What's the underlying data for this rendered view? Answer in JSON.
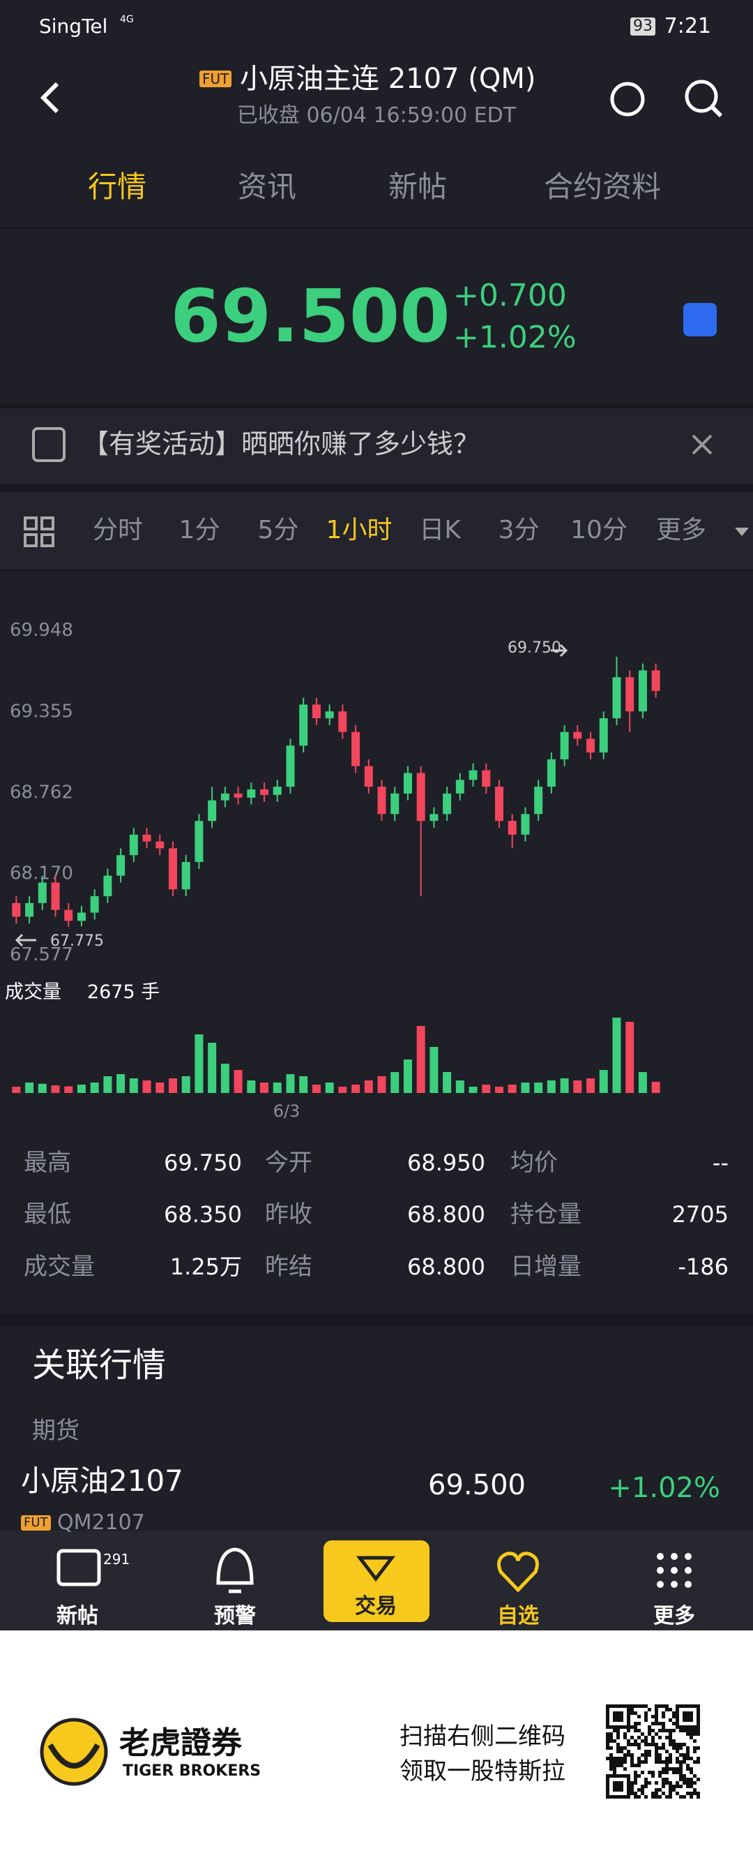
{
  "status_bar": {
    "carrier": "SingTel",
    "network": "4G",
    "battery": "93",
    "time": "7:21"
  },
  "header": {
    "badge": "FUT",
    "title": "小原油主连 2107 (QM)",
    "subtitle": "已收盘 06/04 16:59:00 EDT"
  },
  "tabs": [
    "行情",
    "资讯",
    "新帖",
    "合约资料"
  ],
  "quote": {
    "price": "69.500",
    "change": "+0.700",
    "change_pct": "+1.02%"
  },
  "banner": "【有奖活动】晒晒你赚了多少钱？",
  "periods": [
    "分时",
    "1分",
    "5分",
    "1小时",
    "日K",
    "3分",
    "10分",
    "更多"
  ],
  "chart_data": {
    "type": "candlestick",
    "up_color": "#3ccf7d",
    "down_color": "#f2465c",
    "open": [
      67.95,
      67.85,
      67.95,
      68.1,
      67.9,
      67.82,
      67.88,
      68.0,
      68.15,
      68.3,
      68.45,
      68.4,
      68.35,
      68.05,
      68.25,
      68.55,
      68.7,
      68.75,
      68.72,
      68.78,
      68.74,
      68.8,
      69.1,
      69.4,
      69.3,
      69.35,
      69.2,
      68.95,
      68.8,
      68.6,
      68.75,
      68.9,
      68.55,
      68.6,
      68.75,
      68.85,
      68.92,
      68.8,
      68.55,
      68.45,
      68.6,
      68.8,
      69.0,
      69.2,
      69.15,
      69.05,
      69.3,
      69.6,
      69.35,
      69.65
    ],
    "high": [
      68.0,
      68.0,
      68.15,
      68.15,
      67.95,
      67.93,
      68.05,
      68.2,
      68.35,
      68.5,
      68.5,
      68.45,
      68.4,
      68.3,
      68.6,
      68.8,
      68.8,
      68.8,
      68.83,
      68.83,
      68.85,
      69.15,
      69.45,
      69.45,
      69.4,
      69.4,
      69.25,
      69.0,
      68.85,
      68.8,
      68.95,
      68.95,
      68.65,
      68.8,
      68.9,
      68.97,
      68.97,
      68.85,
      68.6,
      68.65,
      68.85,
      69.05,
      69.25,
      69.25,
      69.2,
      69.35,
      69.75,
      69.65,
      69.7,
      69.7
    ],
    "low": [
      67.8,
      67.8,
      67.9,
      67.85,
      67.775,
      67.78,
      67.83,
      67.95,
      68.1,
      68.25,
      68.35,
      68.3,
      68.0,
      68.0,
      68.2,
      68.5,
      68.65,
      68.67,
      68.67,
      68.69,
      68.69,
      68.75,
      69.05,
      69.25,
      69.25,
      69.15,
      68.9,
      68.75,
      68.55,
      68.55,
      68.7,
      68.0,
      68.5,
      68.55,
      68.7,
      68.8,
      68.75,
      68.5,
      68.35,
      68.4,
      68.55,
      68.75,
      68.95,
      69.1,
      69.0,
      69.0,
      69.25,
      69.2,
      69.3,
      69.45
    ],
    "close": [
      67.85,
      67.95,
      68.1,
      67.9,
      67.82,
      67.88,
      68.0,
      68.15,
      68.3,
      68.45,
      68.4,
      68.35,
      68.05,
      68.25,
      68.55,
      68.7,
      68.75,
      68.72,
      68.78,
      68.74,
      68.8,
      69.1,
      69.4,
      69.3,
      69.35,
      69.2,
      68.95,
      68.8,
      68.6,
      68.75,
      68.9,
      68.55,
      68.6,
      68.75,
      68.85,
      68.92,
      68.8,
      68.55,
      68.45,
      68.6,
      68.8,
      69.0,
      69.2,
      69.15,
      69.05,
      69.3,
      69.6,
      69.35,
      69.65,
      69.5
    ],
    "ylim": [
      67.577,
      69.948
    ],
    "yticks": [
      69.948,
      69.355,
      68.762,
      {
        "value": 68.17,
        "label": "68.170"
      },
      67.577
    ],
    "annotations": [
      {
        "value": 69.75,
        "label": "69.750"
      },
      {
        "value": 67.775,
        "label": "67.775"
      }
    ],
    "x_label": "6/3",
    "volume": {
      "label": "成交量",
      "current": "2675 手",
      "ylim": [
        0,
        20000
      ],
      "values": [
        1500,
        2500,
        2200,
        1800,
        1600,
        2000,
        2500,
        4000,
        4500,
        3500,
        3000,
        2500,
        3500,
        4000,
        14000,
        12000,
        7000,
        5500,
        3000,
        2500,
        2500,
        4500,
        4000,
        2000,
        2500,
        1500,
        2000,
        3000,
        4000,
        5000,
        8000,
        16000,
        11000,
        5000,
        3000,
        1500,
        2000,
        1500,
        2000,
        2500,
        2500,
        3000,
        3500,
        3000,
        3500,
        5500,
        18000,
        17000,
        5000,
        2675
      ]
    }
  },
  "stats": [
    [
      {
        "label": "最高",
        "value": "69.750"
      },
      {
        "label": "今开",
        "value": "68.950"
      },
      {
        "label": "均价",
        "value": "--"
      }
    ],
    [
      {
        "label": "最低",
        "value": "68.350"
      },
      {
        "label": "昨收",
        "value": "68.800"
      },
      {
        "label": "持仓量",
        "value": "2705"
      }
    ],
    [
      {
        "label": "成交量",
        "value": "1.25万"
      },
      {
        "label": "昨结",
        "value": "68.800"
      },
      {
        "label": "日增量",
        "value": "-186"
      }
    ]
  ],
  "related": {
    "title": "关联行情",
    "section": "期货",
    "name": "小原油2107",
    "badge": "FUT",
    "code": "QM2107",
    "price": "69.500",
    "change": "+1.02%"
  },
  "nav": [
    {
      "label": "新帖",
      "badge": "291"
    },
    {
      "label": "预警"
    },
    {
      "label": "交易"
    },
    {
      "label": "自选"
    },
    {
      "label": "更多"
    }
  ],
  "footer": {
    "brand": "老虎證券",
    "brand_en": "TIGER BROKERS",
    "lines": [
      "扫描右侧二维码",
      "领取一股特斯拉"
    ]
  }
}
